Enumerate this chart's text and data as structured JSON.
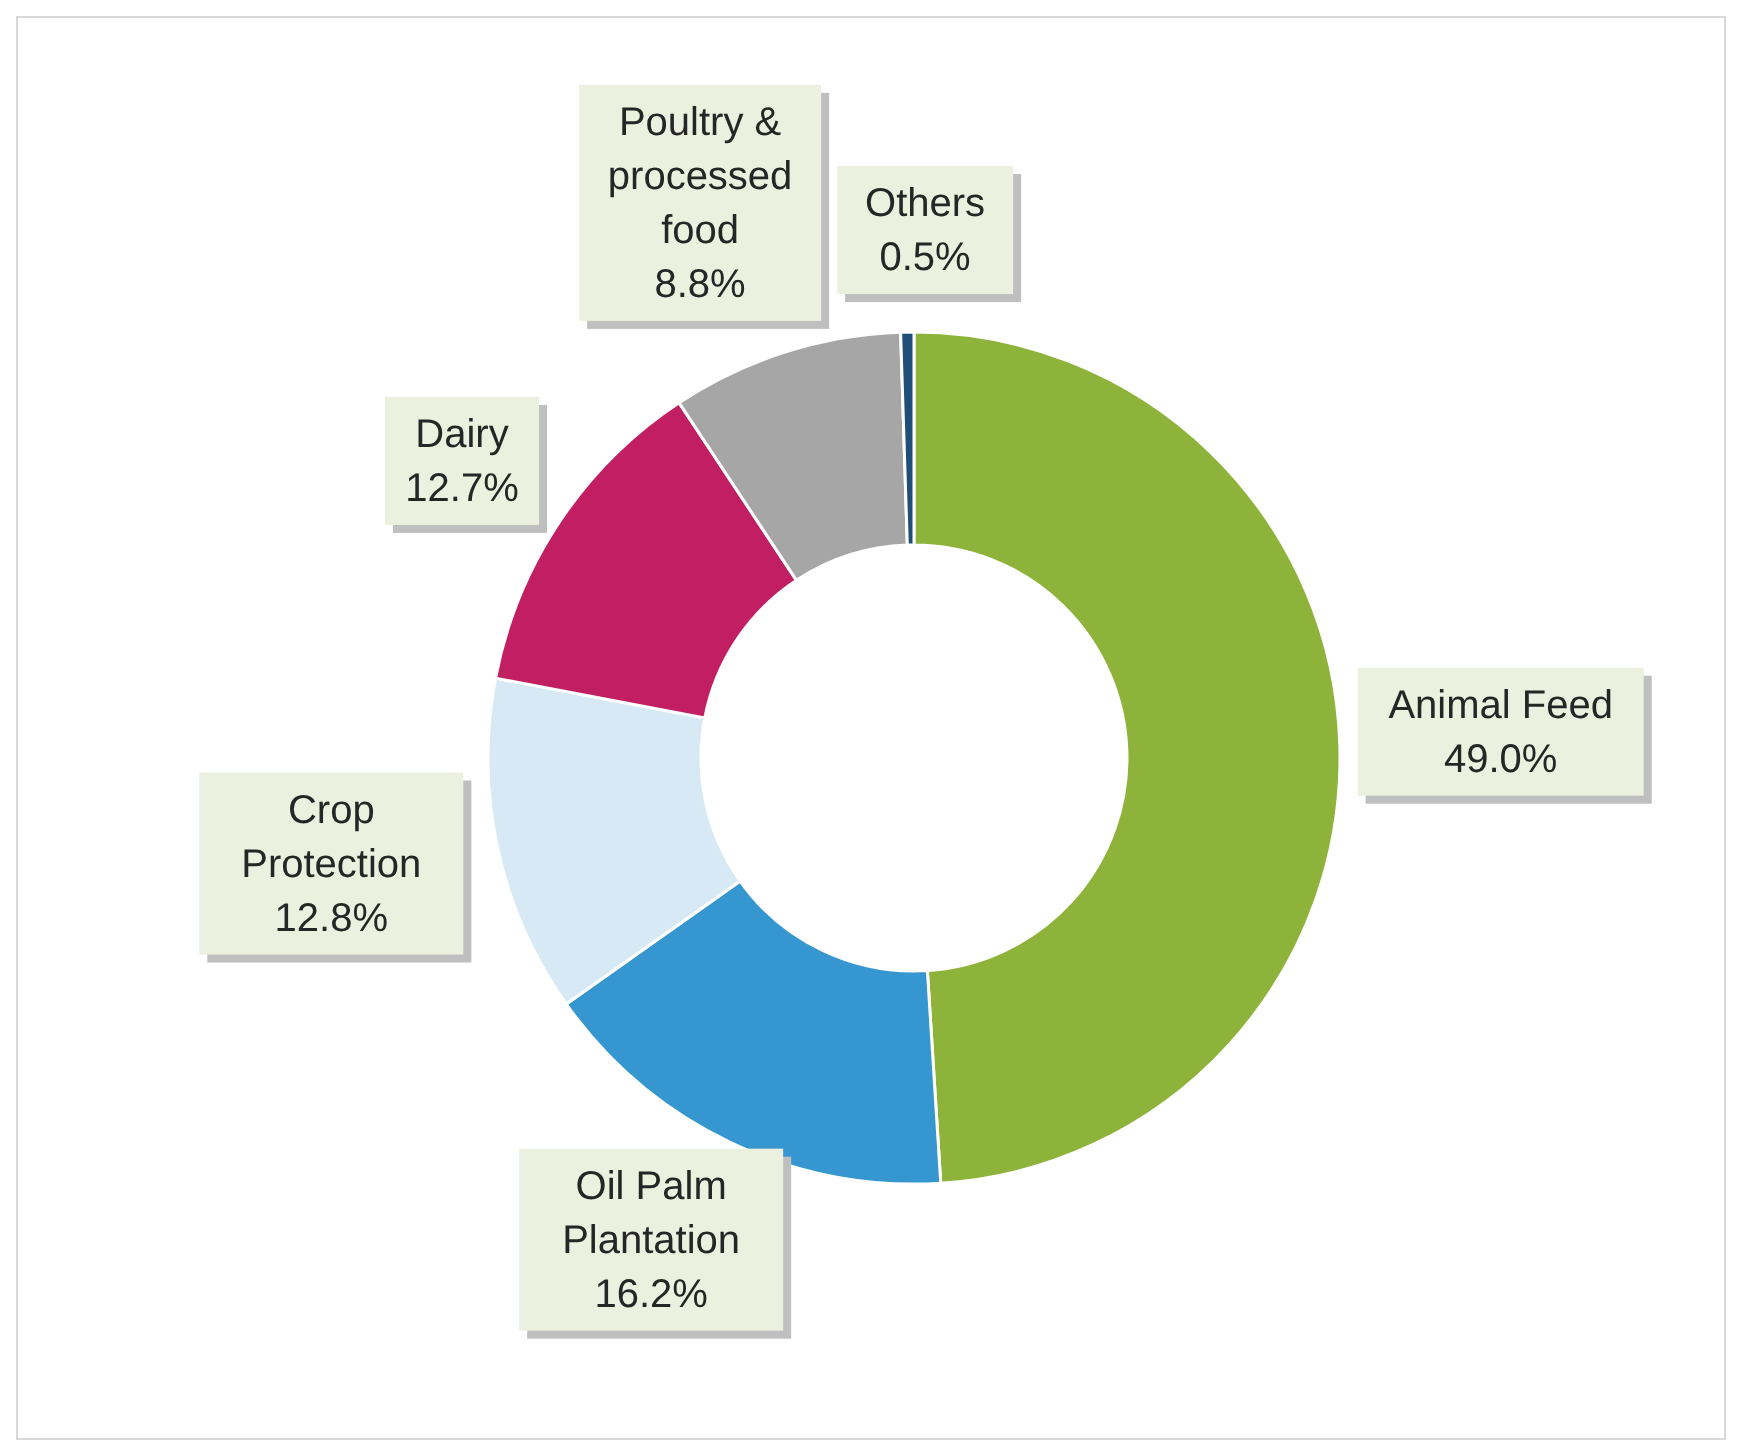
{
  "chart_data": {
    "type": "donut",
    "categories": [
      "Animal Feed",
      "Oil Palm Plantation",
      "Crop Protection",
      "Dairy",
      "Poultry & processed food",
      "Others"
    ],
    "values": [
      49.0,
      16.2,
      12.8,
      12.7,
      8.8,
      0.5
    ],
    "colors": [
      "#8db33a",
      "#3596d0",
      "#d6e9f5",
      "#c21f63",
      "#a6a6a6",
      "#1f4e79"
    ],
    "value_labels": [
      "49.0%",
      "16.2%",
      "12.8%",
      "12.7%",
      "8.8%",
      "0.5%"
    ]
  }
}
